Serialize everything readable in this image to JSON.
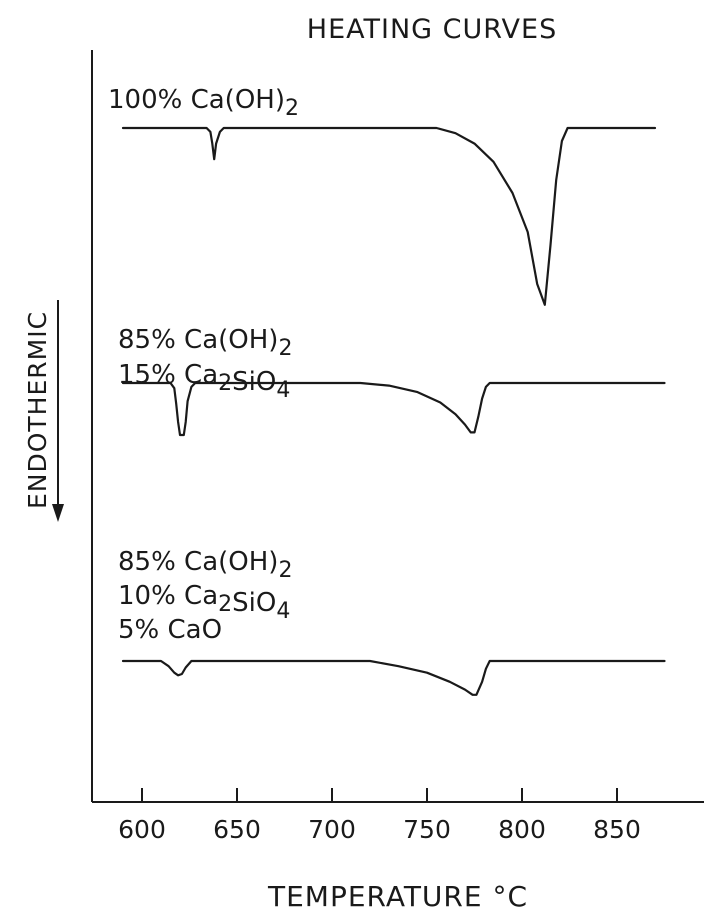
{
  "chart_data": {
    "type": "line",
    "title": "HEATING CURVES",
    "xlabel": "TEMPERATURE °C",
    "ylabel": "ENDOTHERMIC",
    "x_ticks": [
      600,
      650,
      700,
      750,
      800,
      850
    ],
    "xlim": [
      575,
      885
    ],
    "grid": false,
    "series": [
      {
        "label_lines": [
          "100% Ca(OH)2"
        ],
        "points": [
          [
            590,
            0
          ],
          [
            634,
            0
          ],
          [
            636,
            -0.3
          ],
          [
            637,
            -1.2
          ],
          [
            638,
            -2.4
          ],
          [
            639,
            -1.2
          ],
          [
            641,
            -0.3
          ],
          [
            643,
            0
          ],
          [
            755,
            0
          ],
          [
            765,
            -0.4
          ],
          [
            775,
            -1.2
          ],
          [
            785,
            -2.6
          ],
          [
            795,
            -5.0
          ],
          [
            803,
            -8.0
          ],
          [
            808,
            -12.0
          ],
          [
            812,
            -13.6
          ],
          [
            815,
            -9.0
          ],
          [
            818,
            -4.0
          ],
          [
            821,
            -1.0
          ],
          [
            824,
            0
          ],
          [
            870,
            0
          ]
        ]
      },
      {
        "label_lines": [
          "85% Ca(OH)2",
          "15% Ca2SiO4"
        ],
        "points": [
          [
            590,
            0
          ],
          [
            615,
            0
          ],
          [
            617,
            -0.4
          ],
          [
            618,
            -1.6
          ],
          [
            619,
            -3.0
          ],
          [
            620,
            -4.0
          ],
          [
            622,
            -4.0
          ],
          [
            623,
            -3.0
          ],
          [
            624,
            -1.4
          ],
          [
            626,
            -0.3
          ],
          [
            628,
            0
          ],
          [
            715,
            0
          ],
          [
            730,
            -0.2
          ],
          [
            745,
            -0.7
          ],
          [
            757,
            -1.5
          ],
          [
            765,
            -2.4
          ],
          [
            770,
            -3.2
          ],
          [
            773,
            -3.8
          ],
          [
            775,
            -3.8
          ],
          [
            777,
            -2.6
          ],
          [
            779,
            -1.2
          ],
          [
            781,
            -0.3
          ],
          [
            783,
            0
          ],
          [
            875,
            0
          ]
        ]
      },
      {
        "label_lines": [
          "85% Ca(OH)2",
          "10% Ca2SiO4",
          "5% CaO"
        ],
        "points": [
          [
            590,
            0
          ],
          [
            610,
            0
          ],
          [
            614,
            -0.4
          ],
          [
            617,
            -0.9
          ],
          [
            619,
            -1.1
          ],
          [
            621,
            -1.0
          ],
          [
            623,
            -0.5
          ],
          [
            626,
            0
          ],
          [
            720,
            0
          ],
          [
            735,
            -0.4
          ],
          [
            750,
            -0.9
          ],
          [
            762,
            -1.6
          ],
          [
            770,
            -2.2
          ],
          [
            774,
            -2.6
          ],
          [
            776,
            -2.6
          ],
          [
            779,
            -1.6
          ],
          [
            781,
            -0.6
          ],
          [
            783,
            0
          ],
          [
            875,
            0
          ]
        ]
      }
    ]
  }
}
